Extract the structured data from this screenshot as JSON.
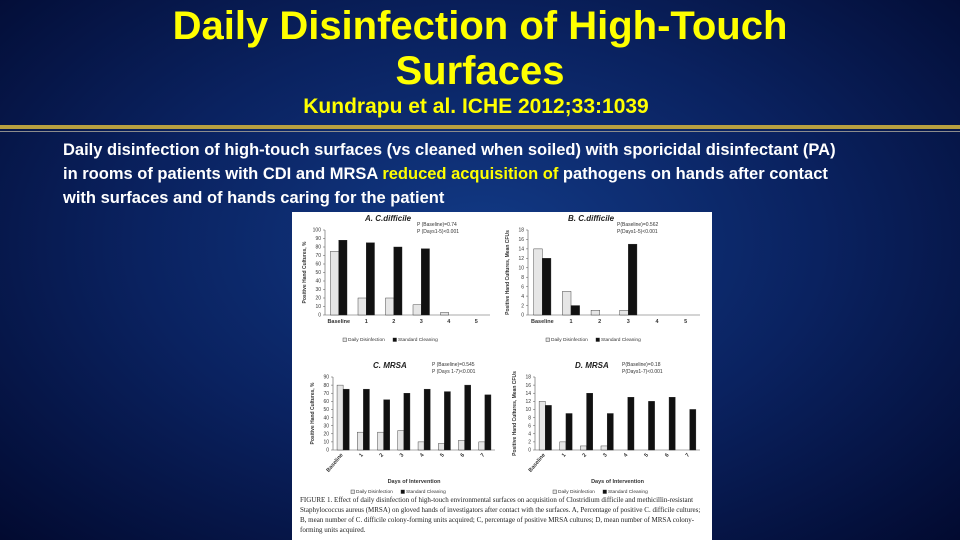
{
  "header": {
    "title": "Daily Disinfection of High-Touch Surfaces",
    "subtitle": "Kundrapu et al. ICHE 2012;33:1039"
  },
  "body": {
    "segments": [
      {
        "text": "Daily disinfection of high-touch surfaces (vs cleaned when soiled) with sporicidal disinfectant (PA) in rooms of patients with CDI and MRSA ",
        "highlight": false
      },
      {
        "text": "reduced acquisition of",
        "highlight": true
      },
      {
        "text": " pathogens on hands after contact with surfaces and of hands caring for the patient",
        "highlight": false
      }
    ]
  },
  "figure": {
    "panels": [
      {
        "type": "bar",
        "title": "A. C.difficile",
        "y_label": "Positive Hand Cultures, %",
        "categories": [
          "Baseline",
          "1",
          "2",
          "3",
          "4",
          "5"
        ],
        "series": [
          {
            "name": "Daily Disinfection",
            "color": "#e6e6e6",
            "values": [
              75,
              20,
              20,
              12,
              3,
              0
            ]
          },
          {
            "name": "Standard Cleaning",
            "color": "#111111",
            "values": [
              88,
              85,
              80,
              78,
              0,
              0
            ]
          }
        ],
        "ylim": [
          0,
          100
        ],
        "yticks": [
          0,
          10,
          20,
          30,
          40,
          50,
          60,
          70,
          80,
          90,
          100
        ],
        "annotations": [
          "P (Baseline)=0.74",
          "P (Days1-5)<0.001"
        ]
      },
      {
        "type": "bar",
        "title": "B. C.difficile",
        "y_label": "Positive Hand Cultures, Mean CFUs",
        "categories": [
          "Baseline",
          "1",
          "2",
          "3",
          "4",
          "5"
        ],
        "series": [
          {
            "name": "Daily Disinfection",
            "color": "#e6e6e6",
            "values": [
              14,
              5,
              1,
              1,
              0,
              0
            ]
          },
          {
            "name": "Standard Cleaning",
            "color": "#111111",
            "values": [
              12,
              2,
              0,
              15,
              0,
              0
            ]
          }
        ],
        "ylim": [
          0,
          18
        ],
        "yticks": [
          0,
          2,
          4,
          6,
          8,
          10,
          12,
          14,
          16,
          18
        ],
        "annotations": [
          "P(Baseline)=0.562",
          "P(Days1-5)<0.001"
        ]
      },
      {
        "type": "bar",
        "title": "C. MRSA",
        "y_label": "Positive Hand Cultures, %",
        "x_label": "Days of Intervention",
        "categories": [
          "Baseline",
          "1",
          "2",
          "3",
          "4",
          "5",
          "6",
          "7"
        ],
        "series": [
          {
            "name": "Daily Disinfection",
            "color": "#e6e6e6",
            "values": [
              80,
              22,
              22,
              24,
              10,
              8,
              12,
              10
            ]
          },
          {
            "name": "Standard Cleaning",
            "color": "#111111",
            "values": [
              75,
              75,
              62,
              70,
              75,
              72,
              80,
              68
            ]
          }
        ],
        "ylim": [
          0,
          90
        ],
        "yticks": [
          0,
          10,
          20,
          30,
          40,
          50,
          60,
          70,
          80,
          90
        ],
        "annotations": [
          "P (Baseline)=0.545",
          "P (Days 1-7)<0.001"
        ]
      },
      {
        "type": "bar",
        "title": "D. MRSA",
        "y_label": "Positive Hand Cultures, Mean CFUs",
        "x_label": "Days of Intervention",
        "categories": [
          "Baseline",
          "1",
          "2",
          "3",
          "4",
          "5",
          "6",
          "7"
        ],
        "series": [
          {
            "name": "Daily Disinfection",
            "color": "#e6e6e6",
            "values": [
              12,
              2,
              1,
              1,
              0,
              0,
              0,
              0
            ]
          },
          {
            "name": "Standard Cleaning",
            "color": "#111111",
            "values": [
              11,
              9,
              14,
              9,
              13,
              12,
              13,
              10
            ]
          }
        ],
        "ylim": [
          0,
          18
        ],
        "yticks": [
          0,
          2,
          4,
          6,
          8,
          10,
          12,
          14,
          16,
          18
        ],
        "annotations": [
          "P(Baseline)=0.18",
          "P(Days1-7)<0.001"
        ]
      }
    ],
    "caption": "FIGURE 1. Effect of daily disinfection of high-touch environmental surfaces on acquisition of Clostridium difficile and methicillin-resistant Staphylococcus aureus (MRSA) on gloved hands of investigators after contact with the surfaces. A, Percentage of positive C. difficile cultures; B, mean number of C. difficile colony-forming units acquired; C, percentage of positive MRSA cultures; D, mean number of MRSA colony-forming units acquired."
  }
}
